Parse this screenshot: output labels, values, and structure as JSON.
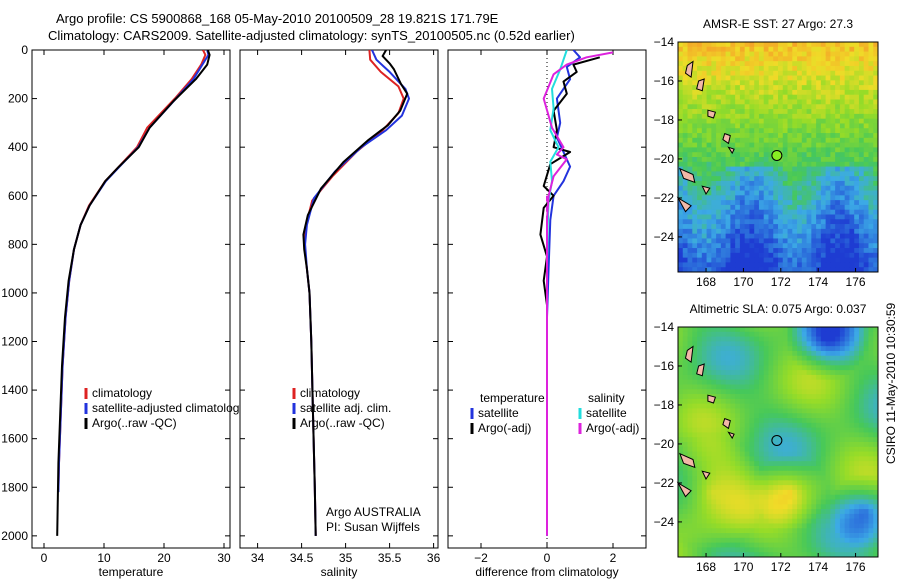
{
  "header": {
    "line1": "Argo profile: CS 5900868_168 05-May-2010 20100509_28 19.821S 171.79E",
    "line2": "Climatology: CARS2009. Satellite-adjusted climatology: synTS_20100505.nc (0.52d earlier)"
  },
  "credit": "CSIRO 11-May-2010 10:30:59",
  "colors": {
    "climatology": "#dd2222",
    "satellite": "#2233dd",
    "argo": "#000000",
    "sat_salinity": "#22dddd",
    "argo_salinity": "#dd22dd"
  },
  "chart_data": [
    {
      "id": "temperature",
      "type": "line",
      "xlabel": "temperature",
      "ylabel": "",
      "xlim": [
        -2,
        31
      ],
      "ylim": [
        2050,
        0
      ],
      "y_reversed": true,
      "xticks": [
        0,
        10,
        20,
        30
      ],
      "yticks": [
        0,
        200,
        400,
        600,
        800,
        1000,
        1200,
        1400,
        1600,
        1800,
        2000
      ],
      "legend": {
        "position": "lower-right",
        "entries": [
          "climatology",
          "satellite-adjusted climatology",
          "Argo(..raw -QC)"
        ]
      },
      "series": [
        {
          "name": "climatology",
          "color": "#dd2222",
          "points": [
            [
              26.5,
              0
            ],
            [
              26.9,
              20
            ],
            [
              26.2,
              60
            ],
            [
              24.6,
              120
            ],
            [
              21.8,
              200
            ],
            [
              17.2,
              320
            ],
            [
              15.5,
              400
            ],
            [
              12.5,
              480
            ],
            [
              10.2,
              540
            ],
            [
              7.5,
              640
            ],
            [
              6.1,
              720
            ],
            [
              5.0,
              820
            ],
            [
              4.2,
              950
            ],
            [
              3.6,
              1100
            ],
            [
              3.1,
              1300
            ],
            [
              2.8,
              1500
            ],
            [
              2.5,
              1700
            ],
            [
              2.4,
              1810
            ]
          ]
        },
        {
          "name": "satellite-adjusted climatology",
          "color": "#2233dd",
          "points": [
            [
              27.2,
              0
            ],
            [
              27.4,
              20
            ],
            [
              26.4,
              60
            ],
            [
              24.9,
              120
            ],
            [
              22.0,
              200
            ],
            [
              17.6,
              320
            ],
            [
              15.7,
              400
            ],
            [
              12.6,
              480
            ],
            [
              10.3,
              540
            ],
            [
              7.6,
              640
            ],
            [
              6.1,
              720
            ],
            [
              5.0,
              820
            ],
            [
              4.2,
              950
            ],
            [
              3.6,
              1100
            ],
            [
              3.1,
              1300
            ],
            [
              2.8,
              1500
            ],
            [
              2.5,
              1700
            ],
            [
              2.4,
              1820
            ]
          ]
        },
        {
          "name": "Argo(..raw -QC)",
          "color": "#000000",
          "points": [
            [
              27.3,
              0
            ],
            [
              27.6,
              20
            ],
            [
              27.2,
              60
            ],
            [
              25.3,
              120
            ],
            [
              21.6,
              210
            ],
            [
              17.6,
              320
            ],
            [
              15.8,
              400
            ],
            [
              12.5,
              480
            ],
            [
              10.2,
              540
            ],
            [
              7.6,
              640
            ],
            [
              6.1,
              720
            ],
            [
              5.0,
              820
            ],
            [
              4.1,
              950
            ],
            [
              3.5,
              1100
            ],
            [
              3.0,
              1300
            ],
            [
              2.7,
              1500
            ],
            [
              2.4,
              1700
            ],
            [
              2.3,
              1850
            ],
            [
              2.2,
              2000
            ]
          ]
        }
      ]
    },
    {
      "id": "salinity",
      "type": "line",
      "xlabel": "salinity",
      "ylabel": "",
      "xlim": [
        33.8,
        36.05
      ],
      "ylim": [
        2050,
        0
      ],
      "y_reversed": true,
      "xticks": [
        34,
        34.5,
        35,
        35.5,
        36
      ],
      "yticks": [
        0,
        200,
        400,
        600,
        800,
        1000,
        1200,
        1400,
        1600,
        1800,
        2000
      ],
      "legend": {
        "position": "lower-right",
        "entries": [
          "climatology",
          "satellite adj. clim.",
          "Argo(..raw -QC)"
        ]
      },
      "annotation": [
        "Argo AUSTRALIA",
        "PI: Susan Wijffels"
      ],
      "series": [
        {
          "name": "climatology",
          "color": "#dd2222",
          "points": [
            [
              35.27,
              0
            ],
            [
              35.28,
              40
            ],
            [
              35.4,
              90
            ],
            [
              35.6,
              150
            ],
            [
              35.66,
              200
            ],
            [
              35.6,
              260
            ],
            [
              35.42,
              330
            ],
            [
              35.12,
              420
            ],
            [
              34.85,
              520
            ],
            [
              34.62,
              620
            ],
            [
              34.55,
              720
            ],
            [
              34.53,
              800
            ],
            [
              34.56,
              900
            ],
            [
              34.59,
              1000
            ],
            [
              34.61,
              1200
            ],
            [
              34.63,
              1500
            ],
            [
              34.65,
              1800
            ],
            [
              34.66,
              2000
            ]
          ]
        },
        {
          "name": "satellite adj. clim.",
          "color": "#2233dd",
          "points": [
            [
              35.3,
              0
            ],
            [
              35.35,
              40
            ],
            [
              35.5,
              90
            ],
            [
              35.68,
              160
            ],
            [
              35.72,
              200
            ],
            [
              35.64,
              270
            ],
            [
              35.46,
              330
            ],
            [
              35.18,
              400
            ],
            [
              34.88,
              500
            ],
            [
              34.64,
              610
            ],
            [
              34.56,
              720
            ],
            [
              34.54,
              800
            ],
            [
              34.56,
              900
            ],
            [
              34.59,
              1000
            ],
            [
              34.61,
              1200
            ],
            [
              34.63,
              1500
            ],
            [
              34.65,
              1800
            ],
            [
              34.66,
              2000
            ]
          ]
        },
        {
          "name": "Argo(..raw -QC)",
          "color": "#000000",
          "points": [
            [
              35.46,
              0
            ],
            [
              35.42,
              25
            ],
            [
              35.5,
              55
            ],
            [
              35.55,
              80
            ],
            [
              35.63,
              140
            ],
            [
              35.7,
              180
            ],
            [
              35.62,
              250
            ],
            [
              35.48,
              310
            ],
            [
              35.26,
              370
            ],
            [
              34.98,
              460
            ],
            [
              34.72,
              570
            ],
            [
              34.57,
              680
            ],
            [
              34.52,
              760
            ],
            [
              34.53,
              820
            ],
            [
              34.56,
              900
            ],
            [
              34.59,
              1000
            ],
            [
              34.61,
              1200
            ],
            [
              34.63,
              1500
            ],
            [
              34.65,
              1800
            ],
            [
              34.66,
              2000
            ]
          ]
        }
      ]
    },
    {
      "id": "difference",
      "type": "line",
      "xlabel": "difference from climatology",
      "ylabel": "",
      "xlim": [
        -3.0,
        3.0
      ],
      "ylim": [
        2050,
        0
      ],
      "y_reversed": true,
      "xticks": [
        -2,
        0,
        2
      ],
      "yticks": [
        0,
        200,
        400,
        600,
        800,
        1000,
        1200,
        1400,
        1600,
        1800,
        2000
      ],
      "legend": {
        "position": "lower-center",
        "columns": [
          [
            "temperature",
            "satellite",
            "Argo(-adj)"
          ],
          [
            "salinity",
            "satellite",
            "Argo(-adj)"
          ]
        ]
      },
      "series": [
        {
          "name": "temperature satellite",
          "color": "#2233dd",
          "points": [
            [
              0.8,
              0
            ],
            [
              1.0,
              30
            ],
            [
              0.6,
              70
            ],
            [
              0.7,
              120
            ],
            [
              0.3,
              200
            ],
            [
              0.4,
              300
            ],
            [
              0.3,
              360
            ],
            [
              0.5,
              420
            ],
            [
              0.7,
              480
            ],
            [
              0.5,
              540
            ],
            [
              0.2,
              600
            ],
            [
              0.1,
              700
            ],
            [
              0.05,
              900
            ],
            [
              0,
              1100
            ],
            [
              0,
              1400
            ],
            [
              0,
              1800
            ],
            [
              0,
              2000
            ]
          ]
        },
        {
          "name": "temperature Argo(-adj)",
          "color": "#000000",
          "points": [
            [
              1.6,
              30
            ],
            [
              0.8,
              60
            ],
            [
              0.9,
              90
            ],
            [
              0.5,
              130
            ],
            [
              0.6,
              180
            ],
            [
              0.2,
              250
            ],
            [
              0.3,
              330
            ],
            [
              0.2,
              400
            ],
            [
              0.7,
              420
            ],
            [
              0.1,
              470
            ],
            [
              -0.1,
              560
            ],
            [
              0.2,
              600
            ],
            [
              -0.1,
              650
            ],
            [
              -0.2,
              760
            ],
            [
              0,
              850
            ],
            [
              -0.1,
              950
            ],
            [
              0,
              1050
            ],
            [
              0,
              1300
            ],
            [
              0,
              1600
            ],
            [
              0,
              2000
            ]
          ]
        },
        {
          "name": "salinity satellite",
          "color": "#22dddd",
          "points": [
            [
              0.6,
              0
            ],
            [
              0.5,
              40
            ],
            [
              0.4,
              80
            ],
            [
              0.15,
              160
            ],
            [
              0.2,
              240
            ],
            [
              0.1,
              330
            ],
            [
              0.35,
              400
            ],
            [
              0.1,
              460
            ],
            [
              0.15,
              540
            ],
            [
              0.05,
              620
            ],
            [
              0.02,
              720
            ],
            [
              0,
              900
            ],
            [
              0,
              1100
            ],
            [
              0,
              1400
            ],
            [
              0,
              1800
            ],
            [
              0,
              2000
            ]
          ]
        },
        {
          "name": "salinity Argo(-adj)",
          "color": "#dd22dd",
          "points": [
            [
              2.0,
              10
            ],
            [
              1.2,
              30
            ],
            [
              0.6,
              60
            ],
            [
              0.2,
              100
            ],
            [
              -0.1,
              200
            ],
            [
              0.15,
              320
            ],
            [
              0.5,
              400
            ],
            [
              0.3,
              430
            ],
            [
              0.6,
              450
            ],
            [
              0.2,
              520
            ],
            [
              0.05,
              600
            ],
            [
              0,
              700
            ],
            [
              0,
              800
            ],
            [
              0,
              1000
            ],
            [
              0,
              1300
            ],
            [
              0,
              1700
            ],
            [
              0,
              2000
            ]
          ]
        }
      ]
    },
    {
      "id": "sst-map",
      "type": "heatmap",
      "title": "AMSR-E SST: 27 Argo: 27.3",
      "xlim": [
        166.5,
        177.2
      ],
      "ylim": [
        -25.8,
        -14
      ],
      "xticks": [
        168,
        170,
        172,
        174,
        176
      ],
      "yticks": [
        -14,
        -16,
        -18,
        -20,
        -22,
        -24
      ],
      "marker": {
        "lon": 171.79,
        "lat": -19.82,
        "fill": "#88ee22"
      },
      "value_bands": [
        [
          -14,
          27.3
        ],
        [
          -17.5,
          27.0
        ],
        [
          -20.5,
          26.7
        ],
        [
          -25.8,
          26.3
        ]
      ]
    },
    {
      "id": "sla-map",
      "type": "heatmap",
      "title": "Altimetric SLA: 0.075 Argo: 0.037",
      "xlim": [
        166.5,
        177.2
      ],
      "ylim": [
        -25.8,
        -14
      ],
      "xticks": [
        168,
        170,
        172,
        174,
        176
      ],
      "yticks": [
        -14,
        -16,
        -18,
        -20,
        -22,
        -24
      ],
      "marker": {
        "lon": 171.79,
        "lat": -19.82,
        "fill": "none"
      }
    }
  ]
}
